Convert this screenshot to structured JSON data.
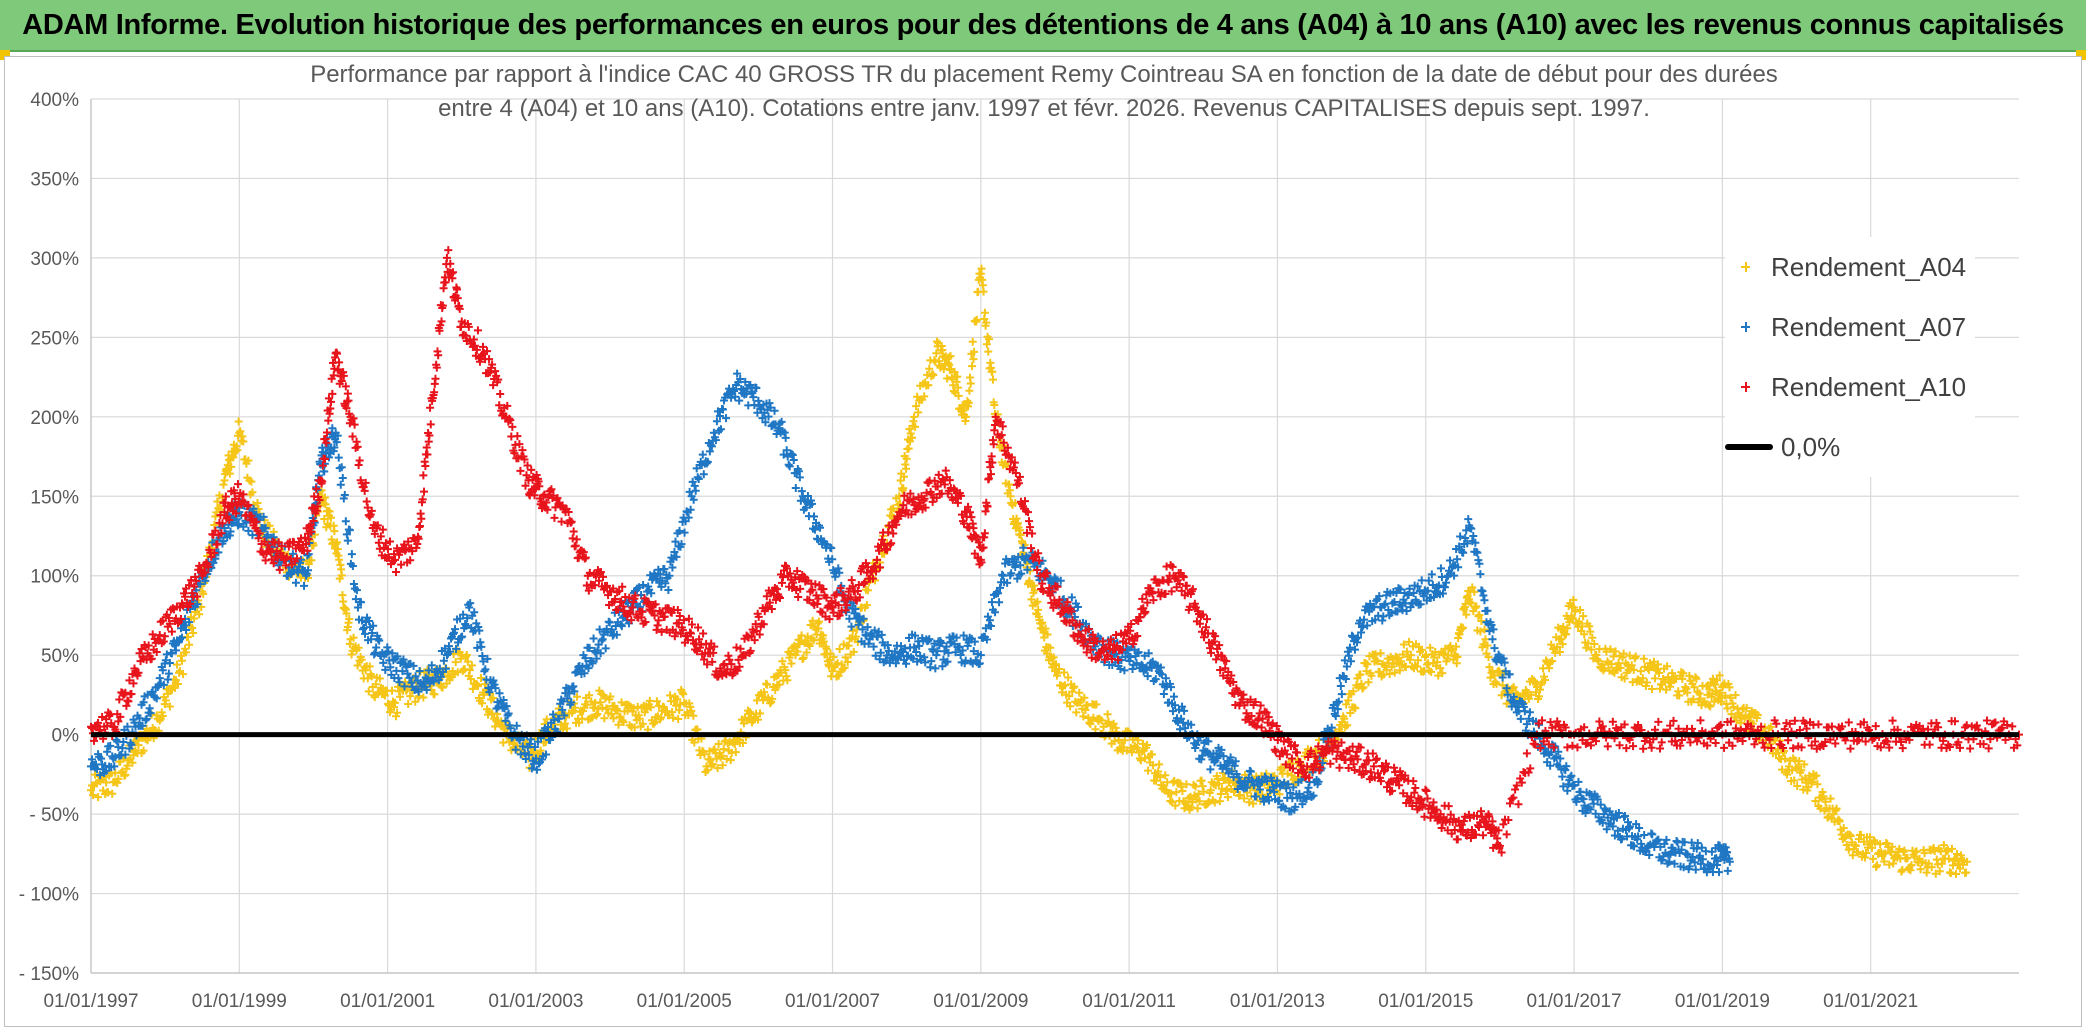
{
  "banner": {
    "title": "ADAM Informe. Evolution historique des performances en euros pour des détentions de 4 ans (A04) à 10 ans (A10) avec les revenus connus capitalisés"
  },
  "chart_data": {
    "type": "scatter",
    "title": "Performance par rapport à l'indice CAC 40 GROSS TR  du placement Remy Cointreau SA en fonction de la date de début pour des durées entre 4 (A04) et 10 ans (A10). Cotations entre janv. 1997 et févr. 2026. Revenus CAPITALISES depuis sept. 1997.",
    "title_lines": [
      "Performance par rapport à l'indice CAC 40 GROSS TR  du placement Remy Cointreau SA en fonction de la date de début pour des durées",
      "entre 4 (A04) et 10 ans (A10). Cotations entre janv. 1997 et févr. 2026. Revenus CAPITALISES depuis sept. 1997."
    ],
    "xlabel": "",
    "ylabel": "",
    "xlim": [
      1997.0,
      2023.0
    ],
    "ylim": [
      -150,
      400
    ],
    "y_ticks": [
      400,
      350,
      300,
      250,
      200,
      150,
      100,
      50,
      0,
      -50,
      -100,
      -150
    ],
    "y_tick_labels": [
      "400%",
      "350%",
      "300%",
      "250%",
      "200%",
      "150%",
      "100%",
      "50%",
      "0%",
      "- 50%",
      "- 100%",
      "- 150%"
    ],
    "x_ticks": [
      1997,
      1999,
      2001,
      2003,
      2005,
      2007,
      2009,
      2011,
      2013,
      2015,
      2017,
      2019,
      2021
    ],
    "x_tick_labels": [
      "01/01/1997",
      "01/01/1999",
      "01/01/2001",
      "01/01/2003",
      "01/01/2005",
      "01/01/2007",
      "01/01/2009",
      "01/01/2011",
      "01/01/2013",
      "01/01/2015",
      "01/01/2017",
      "01/01/2019",
      "01/01/2021"
    ],
    "grid": true,
    "legend_position": "top-right",
    "series": [
      {
        "name": "Rendement_A04",
        "color": "#f5c518",
        "marker": "plus",
        "x": [
          1997.0,
          1997.3,
          1997.6,
          1997.9,
          1998.2,
          1998.5,
          1998.8,
          1999.0,
          1999.3,
          1999.6,
          1999.9,
          2000.1,
          2000.3,
          2000.5,
          2000.8,
          2001.1,
          2001.4,
          2001.7,
          2002.0,
          2002.3,
          2002.6,
          2002.9,
          2003.2,
          2003.5,
          2003.8,
          2004.1,
          2004.4,
          2004.7,
          2005.0,
          2005.3,
          2005.6,
          2005.9,
          2006.2,
          2006.5,
          2006.8,
          2007.0,
          2007.3,
          2007.6,
          2007.9,
          2008.1,
          2008.4,
          2008.6,
          2008.8,
          2009.0,
          2009.2,
          2009.4,
          2009.6,
          2009.8,
          2010.0,
          2010.3,
          2010.6,
          2010.9,
          2011.2,
          2011.5,
          2011.8,
          2012.1,
          2012.4,
          2012.7,
          2013.0,
          2013.3,
          2013.6,
          2013.9,
          2014.2,
          2014.5,
          2014.8,
          2015.1,
          2015.4,
          2015.6,
          2015.9,
          2016.2,
          2016.5,
          2016.8,
          2017.0,
          2017.3,
          2017.6,
          2017.9,
          2018.2,
          2018.5,
          2018.8,
          2019.0,
          2019.3,
          2019.6,
          2019.9,
          2020.2,
          2020.5,
          2020.8,
          2021.1,
          2021.4,
          2021.7,
          2022.0,
          2022.3
        ],
        "y": [
          -35,
          -30,
          -10,
          10,
          40,
          90,
          160,
          190,
          130,
          110,
          100,
          150,
          120,
          60,
          30,
          20,
          30,
          35,
          50,
          25,
          0,
          -15,
          5,
          15,
          20,
          15,
          10,
          15,
          20,
          -20,
          -10,
          10,
          30,
          50,
          70,
          40,
          60,
          110,
          150,
          200,
          240,
          230,
          200,
          290,
          200,
          150,
          110,
          70,
          40,
          20,
          10,
          -5,
          -10,
          -35,
          -40,
          -35,
          -30,
          -35,
          -30,
          -20,
          -10,
          10,
          40,
          45,
          50,
          45,
          50,
          90,
          40,
          20,
          30,
          60,
          80,
          50,
          45,
          40,
          35,
          30,
          25,
          30,
          10,
          0,
          -20,
          -30,
          -50,
          -70,
          -75,
          -78,
          -80,
          -78,
          -80
        ]
      },
      {
        "name": "Rendement_A07",
        "color": "#1f77c4",
        "marker": "plus",
        "x": [
          1997.0,
          1997.3,
          1997.6,
          1997.9,
          1998.2,
          1998.5,
          1998.8,
          1999.0,
          1999.3,
          1999.6,
          1999.9,
          2000.1,
          2000.3,
          2000.6,
          2000.9,
          2001.2,
          2001.5,
          2001.8,
          2002.1,
          2002.4,
          2002.7,
          2003.0,
          2003.3,
          2003.6,
          2003.9,
          2004.2,
          2004.5,
          2004.8,
          2005.1,
          2005.4,
          2005.7,
          2006.0,
          2006.3,
          2006.6,
          2006.9,
          2007.2,
          2007.5,
          2007.8,
          2008.1,
          2008.4,
          2008.7,
          2009.0,
          2009.3,
          2009.6,
          2009.9,
          2010.2,
          2010.5,
          2010.8,
          2011.1,
          2011.4,
          2011.7,
          2012.0,
          2012.3,
          2012.6,
          2012.9,
          2013.2,
          2013.5,
          2013.8,
          2014.1,
          2014.4,
          2014.7,
          2015.0,
          2015.3,
          2015.6,
          2015.9,
          2016.2,
          2016.5,
          2016.8,
          2017.1,
          2017.4,
          2017.7,
          2018.0,
          2018.3,
          2018.6,
          2018.9,
          2019.1
        ],
        "y": [
          -20,
          -15,
          5,
          30,
          60,
          100,
          130,
          140,
          130,
          110,
          100,
          170,
          190,
          80,
          50,
          40,
          30,
          50,
          80,
          30,
          0,
          -15,
          10,
          40,
          60,
          75,
          90,
          100,
          150,
          190,
          220,
          210,
          190,
          150,
          120,
          80,
          60,
          50,
          55,
          50,
          55,
          50,
          100,
          110,
          100,
          80,
          60,
          50,
          45,
          40,
          10,
          -10,
          -20,
          -30,
          -35,
          -40,
          -30,
          20,
          70,
          80,
          85,
          90,
          100,
          130,
          60,
          20,
          0,
          -20,
          -40,
          -50,
          -60,
          -70,
          -75,
          -77,
          -78,
          -80
        ]
      },
      {
        "name": "Rendement_A10",
        "color": "#e8141c",
        "marker": "plus",
        "x": [
          1997.0,
          1997.3,
          1997.6,
          1997.9,
          1998.2,
          1998.5,
          1998.8,
          1999.0,
          1999.3,
          1999.6,
          1999.9,
          2000.1,
          2000.3,
          2000.5,
          2000.8,
          2001.1,
          2001.4,
          2001.6,
          2001.8,
          2002.0,
          2002.3,
          2002.6,
          2002.9,
          2003.1,
          2003.4,
          2003.7,
          2004.0,
          2004.3,
          2004.6,
          2004.9,
          2005.2,
          2005.5,
          2005.8,
          2006.1,
          2006.4,
          2006.7,
          2007.0,
          2007.3,
          2007.6,
          2007.9,
          2008.2,
          2008.5,
          2008.8,
          2009.0,
          2009.2,
          2009.5,
          2009.8,
          2010.1,
          2010.4,
          2010.7,
          2011.0,
          2011.3,
          2011.6,
          2011.9,
          2012.2,
          2012.5,
          2012.8,
          2013.1,
          2013.4,
          2013.7,
          2014.0,
          2014.3,
          2014.6,
          2014.9,
          2015.2,
          2015.5,
          2015.8,
          2016.0,
          2016.5,
          2017.0,
          2017.5,
          2018.0,
          2018.5,
          2019.0,
          2019.5,
          2020.0,
          2020.5,
          2021.0,
          2021.5,
          2022.0,
          2022.5,
          2023.0
        ],
        "y": [
          5,
          5,
          40,
          60,
          80,
          100,
          140,
          150,
          120,
          110,
          120,
          160,
          240,
          200,
          130,
          110,
          120,
          210,
          300,
          260,
          240,
          200,
          160,
          150,
          140,
          100,
          90,
          80,
          75,
          70,
          60,
          40,
          50,
          80,
          100,
          90,
          80,
          90,
          110,
          140,
          150,
          160,
          140,
          110,
          200,
          160,
          100,
          80,
          60,
          50,
          60,
          90,
          100,
          80,
          50,
          20,
          10,
          -10,
          -20,
          -10,
          -15,
          -20,
          -30,
          -40,
          -50,
          -60,
          -55,
          -70,
          0,
          0,
          0,
          0,
          0,
          0,
          0,
          0,
          0,
          0,
          0,
          0,
          0,
          0
        ]
      },
      {
        "name": "0,0%",
        "color": "#000000",
        "marker": "line",
        "x": [
          1997.0,
          2023.0
        ],
        "y": [
          0,
          0
        ]
      }
    ]
  }
}
